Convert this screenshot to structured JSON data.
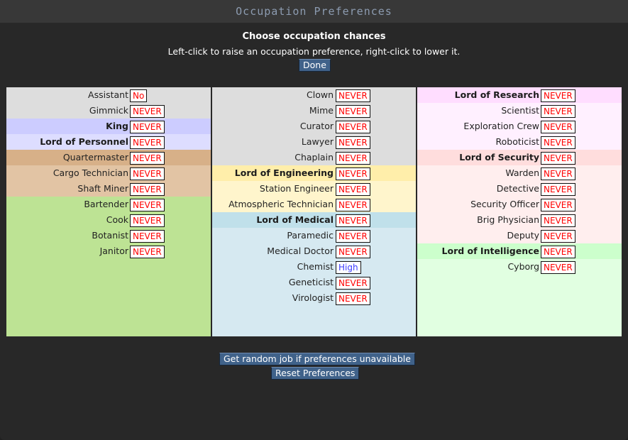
{
  "window": {
    "title": "Occupation Preferences"
  },
  "header": {
    "heading": "Choose occupation chances",
    "instructions": "Left-click to raise an occupation preference, right-click to lower it.",
    "done_label": "Done"
  },
  "footer": {
    "random_job_label": "Get random job if preferences unavailable",
    "reset_label": "Reset Preferences"
  },
  "colors": {
    "command": "#dddddd",
    "king": "#ccccff",
    "personnel": "#ddddff",
    "cargo_head": "#d7b088",
    "cargo": "#e2c4a4",
    "service": "#bde394",
    "civilian": "#dddddd",
    "engineering_head": "#ffeeaa",
    "engineering": "#fff5cc",
    "medical_head": "#c0e0ea",
    "medical": "#d6e9f1",
    "research_head": "#ffddff",
    "research": "#fff0ff",
    "security_head": "#ffdddd",
    "security": "#ffeeee",
    "intel_head": "#ccffcc",
    "intel": "#e1ffe1",
    "pref_never": "#ff0000",
    "pref_high": "#3a3aff",
    "button": "#40628a"
  },
  "columns": [
    {
      "rows": [
        {
          "label": "Assistant",
          "pref": "No",
          "bg": "#dddddd",
          "head": false
        },
        {
          "label": "Gimmick",
          "pref": "NEVER",
          "bg": "#dddddd",
          "head": false
        },
        {
          "label": "King",
          "pref": "NEVER",
          "bg": "#ccccff",
          "head": true
        },
        {
          "label": "Lord of Personnel",
          "pref": "NEVER",
          "bg": "#ddddff",
          "head": true
        },
        {
          "label": "Quartermaster",
          "pref": "NEVER",
          "bg": "#d7b088",
          "head": false
        },
        {
          "label": "Cargo Technician",
          "pref": "NEVER",
          "bg": "#e2c4a4",
          "head": false
        },
        {
          "label": "Shaft Miner",
          "pref": "NEVER",
          "bg": "#e2c4a4",
          "head": false
        },
        {
          "label": "Bartender",
          "pref": "NEVER",
          "bg": "#bde394",
          "head": false
        },
        {
          "label": "Cook",
          "pref": "NEVER",
          "bg": "#bde394",
          "head": false
        },
        {
          "label": "Botanist",
          "pref": "NEVER",
          "bg": "#bde394",
          "head": false
        },
        {
          "label": "Janitor",
          "pref": "NEVER",
          "bg": "#bde394",
          "head": false
        }
      ]
    },
    {
      "rows": [
        {
          "label": "Clown",
          "pref": "NEVER",
          "bg": "#dddddd",
          "head": false
        },
        {
          "label": "Mime",
          "pref": "NEVER",
          "bg": "#dddddd",
          "head": false
        },
        {
          "label": "Curator",
          "pref": "NEVER",
          "bg": "#dddddd",
          "head": false
        },
        {
          "label": "Lawyer",
          "pref": "NEVER",
          "bg": "#dddddd",
          "head": false
        },
        {
          "label": "Chaplain",
          "pref": "NEVER",
          "bg": "#dddddd",
          "head": false
        },
        {
          "label": "Lord of Engineering",
          "pref": "NEVER",
          "bg": "#ffeeaa",
          "head": true
        },
        {
          "label": "Station Engineer",
          "pref": "NEVER",
          "bg": "#fff5cc",
          "head": false
        },
        {
          "label": "Atmospheric Technician",
          "pref": "NEVER",
          "bg": "#fff5cc",
          "head": false
        },
        {
          "label": "Lord of Medical",
          "pref": "NEVER",
          "bg": "#c0e0ea",
          "head": true
        },
        {
          "label": "Paramedic",
          "pref": "NEVER",
          "bg": "#d6e9f1",
          "head": false
        },
        {
          "label": "Medical Doctor",
          "pref": "NEVER",
          "bg": "#d6e9f1",
          "head": false
        },
        {
          "label": "Chemist",
          "pref": "High",
          "bg": "#d6e9f1",
          "head": false
        },
        {
          "label": "Geneticist",
          "pref": "NEVER",
          "bg": "#d6e9f1",
          "head": false
        },
        {
          "label": "Virologist",
          "pref": "NEVER",
          "bg": "#d6e9f1",
          "head": false
        }
      ]
    },
    {
      "rows": [
        {
          "label": "Lord of Research",
          "pref": "NEVER",
          "bg": "#ffddff",
          "head": true
        },
        {
          "label": "Scientist",
          "pref": "NEVER",
          "bg": "#fff0ff",
          "head": false
        },
        {
          "label": "Exploration Crew",
          "pref": "NEVER",
          "bg": "#fff0ff",
          "head": false
        },
        {
          "label": "Roboticist",
          "pref": "NEVER",
          "bg": "#fff0ff",
          "head": false
        },
        {
          "label": "Lord of Security",
          "pref": "NEVER",
          "bg": "#ffdddd",
          "head": true
        },
        {
          "label": "Warden",
          "pref": "NEVER",
          "bg": "#ffeeee",
          "head": false
        },
        {
          "label": "Detective",
          "pref": "NEVER",
          "bg": "#ffeeee",
          "head": false
        },
        {
          "label": "Security Officer",
          "pref": "NEVER",
          "bg": "#ffeeee",
          "head": false
        },
        {
          "label": "Brig Physician",
          "pref": "NEVER",
          "bg": "#ffeeee",
          "head": false
        },
        {
          "label": "Deputy",
          "pref": "NEVER",
          "bg": "#ffeeee",
          "head": false
        },
        {
          "label": "Lord of Intelligence",
          "pref": "NEVER",
          "bg": "#ccffcc",
          "head": true
        },
        {
          "label": "Cyborg",
          "pref": "NEVER",
          "bg": "#e1ffe1",
          "head": false
        }
      ]
    }
  ]
}
